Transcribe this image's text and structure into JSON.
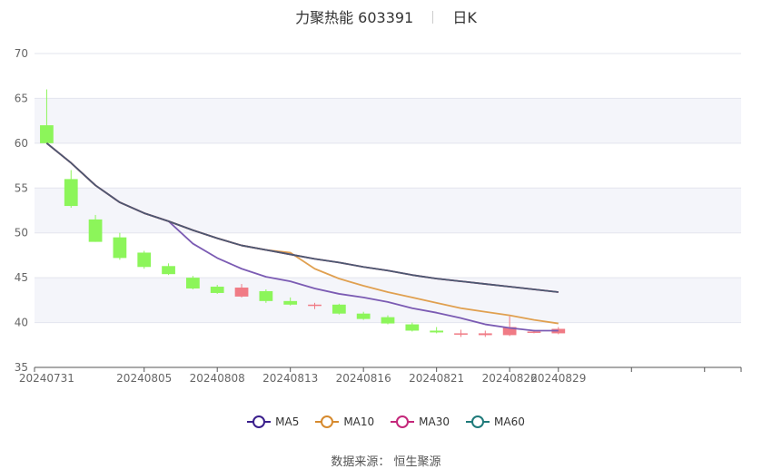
{
  "chart_data": {
    "type": "candlestick",
    "title": "力聚热能 603391",
    "subtitle": "日K",
    "ylim": [
      35,
      70
    ],
    "y_ticks": [
      35,
      40,
      45,
      50,
      55,
      60,
      65,
      70
    ],
    "x_tick_labels": [
      "20240731",
      "20240805",
      "20240808",
      "20240813",
      "20240816",
      "20240821",
      "20240826",
      "20240829"
    ],
    "x_tick_index": [
      0,
      4,
      7,
      10,
      13,
      16,
      19,
      21
    ],
    "slots": 29,
    "candles": [
      {
        "date": "20240731",
        "open": 62.0,
        "close": 60.0,
        "high": 66.0,
        "low": 60.0
      },
      {
        "date": "20240801",
        "open": 56.0,
        "close": 53.0,
        "high": 57.0,
        "low": 52.8
      },
      {
        "date": "20240802",
        "open": 51.5,
        "close": 49.0,
        "high": 52.0,
        "low": 49.0
      },
      {
        "date": "20240805",
        "open": 49.5,
        "close": 47.2,
        "high": 50.0,
        "low": 47.0
      },
      {
        "date": "20240806",
        "open": 47.8,
        "close": 46.2,
        "high": 48.0,
        "low": 46.0
      },
      {
        "date": "20240807",
        "open": 46.3,
        "close": 45.4,
        "high": 46.6,
        "low": 45.3
      },
      {
        "date": "20240808",
        "open": 45.0,
        "close": 43.8,
        "high": 45.2,
        "low": 43.7
      },
      {
        "date": "20240809",
        "open": 44.0,
        "close": 43.3,
        "high": 44.2,
        "low": 43.2
      },
      {
        "date": "20240812",
        "open": 42.9,
        "close": 43.9,
        "high": 44.3,
        "low": 42.8
      },
      {
        "date": "20240813",
        "open": 43.5,
        "close": 42.4,
        "high": 43.7,
        "low": 42.2
      },
      {
        "date": "20240814",
        "open": 42.4,
        "close": 42.0,
        "high": 42.8,
        "low": 41.9
      },
      {
        "date": "20240815",
        "open": 41.9,
        "close": 42.0,
        "high": 42.2,
        "low": 41.5
      },
      {
        "date": "20240816",
        "open": 42.0,
        "close": 41.0,
        "high": 42.1,
        "low": 40.9
      },
      {
        "date": "20240819",
        "open": 41.0,
        "close": 40.4,
        "high": 41.2,
        "low": 40.3
      },
      {
        "date": "20240820",
        "open": 40.6,
        "close": 39.9,
        "high": 40.8,
        "low": 39.8
      },
      {
        "date": "20240821",
        "open": 39.8,
        "close": 39.1,
        "high": 40.0,
        "low": 39.0
      },
      {
        "date": "20240822",
        "open": 39.1,
        "close": 38.9,
        "high": 39.5,
        "low": 38.8
      },
      {
        "date": "20240823",
        "open": 38.7,
        "close": 38.8,
        "high": 39.2,
        "low": 38.4
      },
      {
        "date": "20240826",
        "open": 38.6,
        "close": 38.8,
        "high": 39.1,
        "low": 38.4
      },
      {
        "date": "20240827",
        "open": 38.6,
        "close": 39.5,
        "high": 40.7,
        "low": 38.5
      },
      {
        "date": "20240828",
        "open": 38.9,
        "close": 39.0,
        "high": 39.2,
        "low": 38.8
      },
      {
        "date": "20240829",
        "open": 38.8,
        "close": 39.3,
        "high": 39.5,
        "low": 38.7
      }
    ],
    "ma_series": [
      {
        "name": "MA5",
        "color": "#7b5bb3",
        "values": [
          60.0,
          57.8,
          55.3,
          53.4,
          52.2,
          51.3,
          48.8,
          47.2,
          46.0,
          45.1,
          44.6,
          43.8,
          43.2,
          42.8,
          42.3,
          41.6,
          41.1,
          40.5,
          39.8,
          39.4,
          39.1,
          39.1
        ]
      },
      {
        "name": "MA10",
        "color": "#e0a050",
        "values": [
          60.0,
          57.8,
          55.3,
          53.4,
          52.2,
          51.3,
          50.3,
          49.4,
          48.6,
          48.1,
          47.8,
          46.0,
          44.9,
          44.1,
          43.4,
          42.8,
          42.2,
          41.6,
          41.2,
          40.8,
          40.3,
          39.9
        ]
      },
      {
        "name": "MA30",
        "color": "#c02060",
        "values": [
          60.0,
          57.8,
          55.3,
          53.4,
          52.2,
          51.3,
          50.3,
          49.4,
          48.6,
          48.1,
          47.6,
          47.1,
          46.7,
          46.2,
          45.8,
          45.3,
          44.9,
          44.6,
          44.3,
          44.0,
          43.7,
          43.4
        ]
      },
      {
        "name": "MA60",
        "color": "#4b5a72",
        "values": [
          60.0,
          57.8,
          55.3,
          53.4,
          52.2,
          51.3,
          50.3,
          49.4,
          48.6,
          48.1,
          47.6,
          47.1,
          46.7,
          46.2,
          45.8,
          45.3,
          44.9,
          44.6,
          44.3,
          44.0,
          43.7,
          43.4
        ]
      }
    ],
    "legend": [
      {
        "name": "MA5",
        "color": "#3a1f8c"
      },
      {
        "name": "MA10",
        "color": "#d68a2e"
      },
      {
        "name": "MA30",
        "color": "#c4277a"
      },
      {
        "name": "MA60",
        "color": "#1f7a7a"
      }
    ],
    "colors": {
      "up": "#f07b85",
      "down": "#8cf55a",
      "band": "#f4f5fa",
      "grid": "#e3e5ee",
      "axis": "#666666"
    },
    "source": "数据来源： 恒生聚源",
    "legend_position": "bottom"
  }
}
